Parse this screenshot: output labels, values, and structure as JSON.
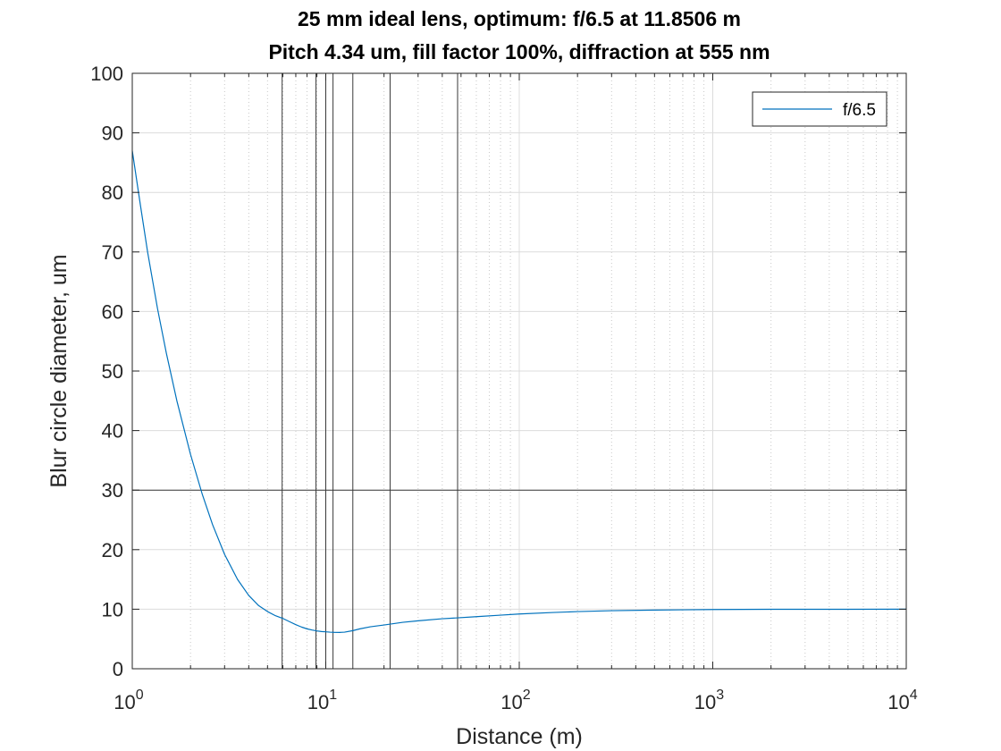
{
  "chart_data": {
    "type": "line",
    "title": [
      "25 mm ideal lens, optimum: f/6.5 at 11.8506 m",
      "Pitch 4.34 um, fill factor 100%, diffraction at 555 nm"
    ],
    "xlabel": "Distance (m)",
    "ylabel": "Blur circle diameter, um",
    "xscale": "log",
    "xlim": [
      1,
      10000
    ],
    "ylim": [
      0,
      100
    ],
    "xticks": [
      1,
      10,
      100,
      1000,
      10000
    ],
    "xtick_labels": [
      {
        "base": "10",
        "exp": "0"
      },
      {
        "base": "10",
        "exp": "1"
      },
      {
        "base": "10",
        "exp": "2"
      },
      {
        "base": "10",
        "exp": "3"
      },
      {
        "base": "10",
        "exp": "4"
      }
    ],
    "yticks": [
      0,
      10,
      20,
      30,
      40,
      50,
      60,
      70,
      80,
      90,
      100
    ],
    "grid": true,
    "minor_grid_x": true,
    "legend": {
      "location": "top-right",
      "entries": [
        "f/6.5"
      ]
    },
    "reference_lines": {
      "horizontal": [
        30
      ],
      "vertical": [
        5.95,
        8.9,
        10.0,
        10.9,
        13.8,
        21.5,
        48.0
      ]
    },
    "series": [
      {
        "name": "f/6.5",
        "color": "#0072BD",
        "x": [
          1,
          1.1,
          1.2,
          1.35,
          1.5,
          1.7,
          2,
          2.3,
          2.6,
          3,
          3.5,
          4,
          4.5,
          5,
          5.5,
          5.95,
          6.5,
          7,
          7.5,
          8,
          8.5,
          9,
          9.5,
          10,
          10.5,
          11,
          11.8,
          12.5,
          13.8,
          15,
          17,
          20,
          25,
          30,
          40,
          48,
          60,
          80,
          100,
          150,
          200,
          300,
          500,
          700,
          1000,
          2000,
          5000,
          10000
        ],
        "y": [
          87,
          78,
          70,
          60.5,
          53,
          45,
          36,
          29.3,
          24.2,
          19.2,
          15,
          12.3,
          10.6,
          9.6,
          8.9,
          8.5,
          7.9,
          7.4,
          7.0,
          6.7,
          6.5,
          6.35,
          6.25,
          6.2,
          6.15,
          6.12,
          6.1,
          6.15,
          6.4,
          6.7,
          7.05,
          7.35,
          7.8,
          8.05,
          8.4,
          8.55,
          8.75,
          9.0,
          9.2,
          9.45,
          9.6,
          9.75,
          9.85,
          9.9,
          9.95,
          9.98,
          9.99,
          10.0
        ]
      }
    ]
  }
}
